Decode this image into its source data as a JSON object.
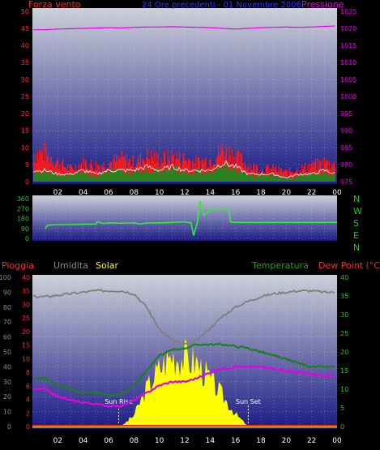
{
  "colors": {
    "bg": "#000000",
    "panel_top": "#c8cbd3",
    "panel_bottom": "#1e1e8a",
    "wind": "#ff1a1a",
    "wind_avg": "#1e8a1e",
    "wind_white": "#e8e8ff",
    "pressure": "#e600e6",
    "direction": "#33ee33",
    "rain": "#ff2222",
    "humidity": "#7f7f7f",
    "solar": "#ffff00",
    "temperature": "#1f7f1f",
    "dewpoint": "#e600e6",
    "label_white": "#ffffff",
    "axis_green": "#2fbf2f",
    "axis_red": "#ff2a2a",
    "title_blue": "#3333ff"
  },
  "chart_data": [
    {
      "type": "area",
      "id": "wind-pressure",
      "title": "24 Ore precedenti - 01 Novembre 2006",
      "left_label": "Forza vento",
      "right_label": "Pressione",
      "x_ticks": [
        "02",
        "04",
        "06",
        "08",
        "10",
        "12",
        "14",
        "16",
        "18",
        "20",
        "22",
        "00"
      ],
      "left_axis": {
        "ylim": [
          0,
          50
        ],
        "ticks": [
          0,
          5,
          10,
          15,
          20,
          25,
          30,
          35,
          40,
          45,
          50
        ]
      },
      "right_axis": {
        "ylim": [
          975,
          1025
        ],
        "ticks": [
          975,
          980,
          985,
          990,
          995,
          1000,
          1005,
          1010,
          1015,
          1020,
          1025
        ]
      },
      "x_hours": [
        1,
        2,
        3,
        4,
        5,
        6,
        7,
        8,
        9,
        10,
        11,
        12,
        13,
        14,
        15,
        16,
        17,
        18,
        19,
        20,
        21,
        22,
        23,
        24
      ],
      "series": [
        {
          "name": "Pressione",
          "values": [
            1019.6,
            1019.8,
            1019.9,
            1020.0,
            1020.1,
            1020.2,
            1020.1,
            1020.3,
            1020.4,
            1020.4,
            1020.5,
            1020.4,
            1020.3,
            1020.2,
            1020.0,
            1019.8,
            1020.0,
            1020.2,
            1020.3,
            1020.4,
            1020.3,
            1020.4,
            1020.6,
            1020.7
          ]
        },
        {
          "name": "Raffica",
          "values": [
            9,
            6,
            4,
            6,
            5,
            6,
            7,
            6,
            8,
            7,
            8,
            7,
            6,
            7,
            10,
            8,
            5,
            4,
            4,
            3,
            4,
            5,
            6,
            5
          ]
        },
        {
          "name": "Vento medio",
          "values": [
            3,
            2,
            2,
            3,
            2,
            3,
            3,
            3,
            4,
            3,
            4,
            3,
            3,
            3,
            5,
            4,
            2,
            2,
            2,
            1,
            2,
            2,
            3,
            2
          ]
        }
      ]
    },
    {
      "type": "line",
      "id": "wind-direction",
      "left_axis": {
        "ylim": [
          0,
          360
        ],
        "ticks": [
          0,
          90,
          180,
          270,
          360
        ]
      },
      "right_labels": [
        "N",
        "W",
        "S",
        "E",
        "N"
      ],
      "x_hours": [
        1,
        1.2,
        2,
        3,
        4,
        5,
        5.1,
        5.6,
        6,
        7,
        8,
        8.5,
        9,
        10,
        11,
        12,
        12.5,
        12.7,
        13,
        13.2,
        13.5,
        13.8,
        14,
        15,
        15.5,
        15.6,
        16,
        17,
        18,
        19,
        20,
        21,
        22,
        23,
        24
      ],
      "series": [
        {
          "name": "Direzione vento",
          "values": [
            85,
            120,
            125,
            125,
            128,
            130,
            150,
            135,
            140,
            138,
            140,
            130,
            140,
            140,
            145,
            150,
            140,
            25,
            150,
            340,
            210,
            235,
            265,
            265,
            265,
            150,
            145,
            145,
            145,
            145,
            145,
            145,
            145,
            145,
            145
          ]
        }
      ]
    },
    {
      "type": "line",
      "id": "temperature-humidity",
      "legend": [
        "Pioggia",
        "Umidita",
        "Solar",
        "Temperatura",
        "Dew Point (°C)"
      ],
      "x_ticks": [
        "02",
        "04",
        "06",
        "08",
        "10",
        "12",
        "14",
        "16",
        "18",
        "20",
        "22",
        "00"
      ],
      "humidity_axis": {
        "ylim": [
          0,
          100
        ],
        "ticks": [
          0,
          10,
          20,
          30,
          40,
          50,
          60,
          70,
          80,
          90,
          100
        ]
      },
      "rain_axis": {
        "ylim": [
          0,
          40
        ],
        "ticks": [
          0,
          2,
          4,
          6,
          8,
          10,
          15,
          20,
          25,
          30,
          35,
          40
        ]
      },
      "temperature_axis": {
        "ylim": [
          0,
          40
        ],
        "ticks": [
          0,
          5,
          10,
          15,
          20,
          25,
          30,
          35,
          40
        ]
      },
      "annotations": [
        {
          "text": "Sun Rise",
          "x_hour": 6.8
        },
        {
          "text": "Sun Set",
          "x_hour": 17.0
        }
      ],
      "x_hours": [
        1,
        2,
        3,
        4,
        5,
        6,
        7,
        8,
        9,
        10,
        11,
        12,
        13,
        14,
        15,
        16,
        17,
        18,
        19,
        20,
        21,
        22,
        23,
        24
      ],
      "series": [
        {
          "name": "Umidita",
          "values": [
            87,
            88,
            89,
            90,
            91,
            91,
            91,
            89,
            80,
            65,
            58,
            55,
            58,
            66,
            74,
            80,
            84,
            87,
            89,
            90,
            91,
            91,
            90,
            90
          ]
        },
        {
          "name": "Temperatura",
          "values": [
            13,
            11,
            10,
            9,
            9,
            8.5,
            8.5,
            11,
            15,
            19,
            20.5,
            21,
            22,
            22,
            22,
            21.5,
            21,
            20,
            19,
            18,
            17,
            16,
            16,
            16
          ]
        },
        {
          "name": "Dew Point",
          "values": [
            10,
            8,
            7,
            6.5,
            6,
            5.5,
            5.5,
            7,
            9,
            11,
            12,
            12,
            13,
            14.5,
            15.5,
            16,
            16,
            16,
            15.5,
            15,
            14.5,
            14,
            13.5,
            13.5
          ]
        },
        {
          "name": "Solar",
          "values": [
            0,
            0,
            0,
            0,
            0,
            0,
            0,
            8,
            28,
            42,
            52,
            50,
            46,
            34,
            22,
            9,
            0,
            0,
            0,
            0,
            0,
            0,
            0,
            0
          ]
        },
        {
          "name": "Pioggia",
          "values": [
            0,
            0,
            0,
            0,
            0,
            0,
            0,
            0,
            0,
            0,
            0,
            0,
            0,
            0,
            0,
            0,
            0,
            0,
            0,
            0,
            0,
            0,
            0,
            0
          ]
        }
      ]
    }
  ]
}
